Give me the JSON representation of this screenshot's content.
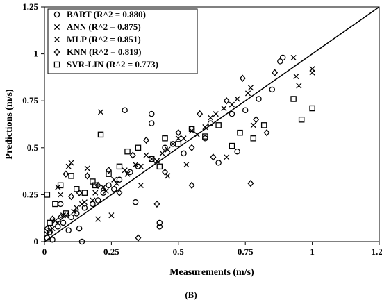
{
  "chart_data": {
    "type": "scatter",
    "xlabel": "Measurements (m/s)",
    "ylabel": "Predictions (m/s)",
    "xlim": [
      0,
      1.25
    ],
    "ylim": [
      0,
      1.25
    ],
    "x_ticks": [
      "0",
      "0.25",
      "0.5",
      "0.75",
      "1",
      "1.25"
    ],
    "y_ticks": [
      "0",
      "0.25",
      "0.5",
      "0.75",
      "1",
      "1.25"
    ],
    "grid": false,
    "legend_position": "top-left",
    "reference_line": "y = x",
    "subfigure_label": "(B)",
    "series": [
      {
        "name": "BART (R^2 = 0.880)",
        "marker": "circle",
        "points": [
          [
            0.01,
            0.02
          ],
          [
            0.02,
            0.05
          ],
          [
            0.03,
            0.01
          ],
          [
            0.05,
            0.08
          ],
          [
            0.07,
            0.1
          ],
          [
            0.09,
            0.06
          ],
          [
            0.1,
            0.13
          ],
          [
            0.12,
            0.15
          ],
          [
            0.14,
            0.0
          ],
          [
            0.15,
            0.18
          ],
          [
            0.18,
            0.2
          ],
          [
            0.2,
            0.22
          ],
          [
            0.22,
            0.26
          ],
          [
            0.24,
            0.3
          ],
          [
            0.26,
            0.28
          ],
          [
            0.28,
            0.33
          ],
          [
            0.3,
            0.7
          ],
          [
            0.32,
            0.37
          ],
          [
            0.35,
            0.4
          ],
          [
            0.4,
            0.63
          ],
          [
            0.4,
            0.68
          ],
          [
            0.43,
            0.08
          ],
          [
            0.43,
            0.1
          ],
          [
            0.45,
            0.5
          ],
          [
            0.48,
            0.52
          ],
          [
            0.52,
            0.47
          ],
          [
            0.55,
            0.6
          ],
          [
            0.6,
            0.55
          ],
          [
            0.65,
            0.42
          ],
          [
            0.7,
            0.68
          ],
          [
            0.75,
            0.7
          ],
          [
            0.8,
            0.76
          ],
          [
            0.85,
            0.81
          ],
          [
            0.88,
            0.96
          ],
          [
            0.89,
            0.98
          ],
          [
            0.06,
            0.2
          ],
          [
            0.13,
            0.07
          ],
          [
            0.34,
            0.21
          ],
          [
            0.62,
            0.63
          ],
          [
            0.72,
            0.48
          ]
        ]
      },
      {
        "name": "ANN (R^2 = 0.875)",
        "marker": "x",
        "points": [
          [
            0.01,
            0.04
          ],
          [
            0.03,
            0.07
          ],
          [
            0.05,
            0.1
          ],
          [
            0.08,
            0.14
          ],
          [
            0.1,
            0.42
          ],
          [
            0.11,
            0.16
          ],
          [
            0.14,
            0.2
          ],
          [
            0.18,
            0.22
          ],
          [
            0.21,
            0.69
          ],
          [
            0.23,
            0.27
          ],
          [
            0.27,
            0.31
          ],
          [
            0.31,
            0.36
          ],
          [
            0.36,
            0.4
          ],
          [
            0.4,
            0.44
          ],
          [
            0.44,
            0.47
          ],
          [
            0.48,
            0.52
          ],
          [
            0.52,
            0.55
          ],
          [
            0.57,
            0.57
          ],
          [
            0.62,
            0.66
          ],
          [
            0.67,
            0.71
          ],
          [
            0.72,
            0.76
          ],
          [
            0.77,
            0.82
          ],
          [
            0.93,
            0.98
          ],
          [
            0.94,
            0.88
          ],
          [
            1.0,
            0.92
          ],
          [
            0.06,
            0.25
          ],
          [
            0.16,
            0.39
          ],
          [
            0.25,
            0.14
          ],
          [
            0.46,
            0.35
          ],
          [
            0.68,
            0.45
          ]
        ]
      },
      {
        "name": "MLP (R^2 = 0.851)",
        "marker": "x",
        "points": [
          [
            0.02,
            0.06
          ],
          [
            0.04,
            0.11
          ],
          [
            0.07,
            0.14
          ],
          [
            0.09,
            0.4
          ],
          [
            0.12,
            0.18
          ],
          [
            0.15,
            0.21
          ],
          [
            0.19,
            0.26
          ],
          [
            0.22,
            0.29
          ],
          [
            0.26,
            0.33
          ],
          [
            0.3,
            0.38
          ],
          [
            0.34,
            0.41
          ],
          [
            0.38,
            0.46
          ],
          [
            0.42,
            0.43
          ],
          [
            0.46,
            0.49
          ],
          [
            0.5,
            0.55
          ],
          [
            0.55,
            0.59
          ],
          [
            0.6,
            0.61
          ],
          [
            0.64,
            0.68
          ],
          [
            0.7,
            0.73
          ],
          [
            0.76,
            0.79
          ],
          [
            0.95,
            0.83
          ],
          [
            1.0,
            0.9
          ],
          [
            0.05,
            0.29
          ],
          [
            0.2,
            0.12
          ],
          [
            0.36,
            0.3
          ],
          [
            0.53,
            0.41
          ],
          [
            0.78,
            0.62
          ]
        ]
      },
      {
        "name": "KNN (R^2 = 0.819)",
        "marker": "diamond",
        "points": [
          [
            0.01,
            0.07
          ],
          [
            0.03,
            0.12
          ],
          [
            0.06,
            0.13
          ],
          [
            0.08,
            0.36
          ],
          [
            0.1,
            0.24
          ],
          [
            0.13,
            0.26
          ],
          [
            0.16,
            0.35
          ],
          [
            0.2,
            0.3
          ],
          [
            0.24,
            0.38
          ],
          [
            0.28,
            0.26
          ],
          [
            0.33,
            0.46
          ],
          [
            0.38,
            0.54
          ],
          [
            0.42,
            0.2
          ],
          [
            0.45,
            0.37
          ],
          [
            0.5,
            0.58
          ],
          [
            0.55,
            0.5
          ],
          [
            0.58,
            0.68
          ],
          [
            0.63,
            0.45
          ],
          [
            0.68,
            0.75
          ],
          [
            0.74,
            0.87
          ],
          [
            0.77,
            0.31
          ],
          [
            0.79,
            0.65
          ],
          [
            0.83,
            0.58
          ],
          [
            0.86,
            0.9
          ],
          [
            0.35,
            0.02
          ],
          [
            0.55,
            0.3
          ]
        ]
      },
      {
        "name": "SVR-LIN (R^2 = 0.773)",
        "marker": "square",
        "points": [
          [
            0.01,
            0.25
          ],
          [
            0.02,
            0.1
          ],
          [
            0.04,
            0.2
          ],
          [
            0.06,
            0.3
          ],
          [
            0.08,
            0.15
          ],
          [
            0.1,
            0.35
          ],
          [
            0.12,
            0.28
          ],
          [
            0.15,
            0.26
          ],
          [
            0.18,
            0.32
          ],
          [
            0.21,
            0.57
          ],
          [
            0.24,
            0.36
          ],
          [
            0.28,
            0.4
          ],
          [
            0.31,
            0.48
          ],
          [
            0.35,
            0.5
          ],
          [
            0.4,
            0.44
          ],
          [
            0.45,
            0.55
          ],
          [
            0.5,
            0.52
          ],
          [
            0.55,
            0.6
          ],
          [
            0.6,
            0.56
          ],
          [
            0.65,
            0.62
          ],
          [
            0.7,
            0.51
          ],
          [
            0.73,
            0.58
          ],
          [
            0.78,
            0.55
          ],
          [
            0.82,
            0.62
          ],
          [
            0.93,
            0.76
          ],
          [
            0.96,
            0.65
          ],
          [
            1.0,
            0.71
          ],
          [
            0.19,
            0.3
          ],
          [
            0.43,
            0.4
          ]
        ]
      }
    ]
  }
}
